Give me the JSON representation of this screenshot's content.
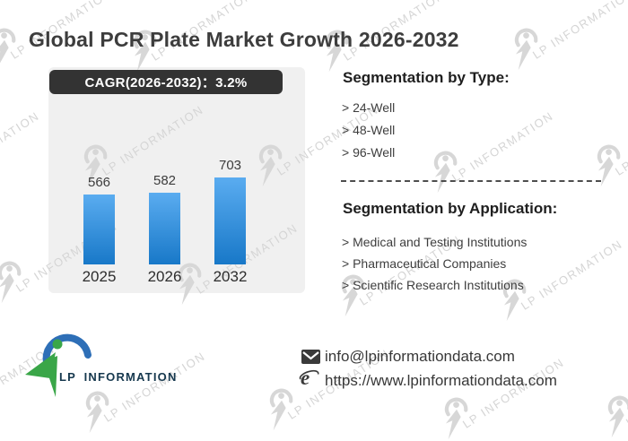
{
  "title": "Global PCR Plate Market Growth 2026-2032",
  "chart_data": {
    "type": "bar",
    "badge": "CAGR(2026-2032)：3.2%",
    "categories": [
      "2025",
      "2026",
      "2032"
    ],
    "values": [
      566,
      582,
      703
    ],
    "ylim": [
      0,
      703
    ],
    "grid": false,
    "legend": "none",
    "bar_color_top": "#5aacf0",
    "bar_color_bottom": "#1878c8",
    "panel_color": "#f0f0f0",
    "badge_color": "#333333"
  },
  "segmentation_type": {
    "heading": "Segmentation by Type:",
    "items": [
      "> 24-Well",
      "> 48-Well",
      "> 96-Well"
    ]
  },
  "segmentation_application": {
    "heading": "Segmentation by Application:",
    "items": [
      "> Medical and Testing Institutions",
      "> Pharmaceutical Companies",
      "> Scientific Research Institutions"
    ]
  },
  "brand": {
    "name": "LP INFORMATION",
    "logo_blue": "#2e6fb7",
    "logo_green": "#3aa648"
  },
  "contact": {
    "email": "info@lpinformationdata.com",
    "website": "https://www.lpinformationdata.com"
  },
  "watermark": {
    "text": "LP INFORMATION"
  }
}
